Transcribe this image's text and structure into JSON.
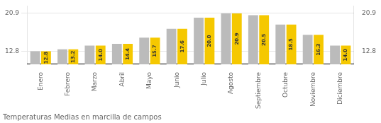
{
  "chart_data": {
    "type": "bar",
    "title": "Temperaturas Medias en marcilla de campos",
    "categories": [
      "Enero",
      "Febrero",
      "Marzo",
      "Abril",
      "Mayo",
      "Junio",
      "Julio",
      "Agosto",
      "Septiembre",
      "Octubre",
      "Noviembre",
      "Diciembre"
    ],
    "series": [
      {
        "color": "#BBBBBB",
        "values": [
          12.8,
          13.2,
          14.0,
          14.4,
          15.7,
          17.6,
          20.0,
          20.9,
          20.5,
          18.5,
          16.3,
          14.0
        ]
      },
      {
        "color": "#F5C800",
        "values": [
          12.8,
          13.2,
          14.0,
          14.4,
          15.7,
          17.6,
          20.0,
          20.9,
          20.5,
          18.5,
          16.3,
          14.0
        ],
        "data_labels": true,
        "value_labels": [
          "12.8",
          "13.2",
          "14.0",
          "14.4",
          "15.7",
          "17.6",
          "20.0",
          "20.9",
          "20.5",
          "18.5",
          "16.3",
          "14.0"
        ]
      }
    ],
    "ylim": [
      10.0,
      22.5
    ],
    "yticks": [
      12.8,
      20.9
    ],
    "y2lim": [
      10.0,
      22.5
    ],
    "y2ticks": [
      12.8,
      20.9
    ],
    "grid": true
  }
}
